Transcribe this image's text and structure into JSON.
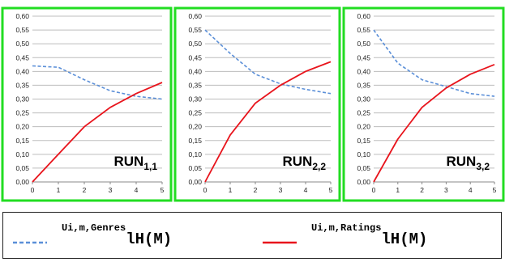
{
  "chart_data": [
    {
      "type": "line",
      "run_label": {
        "base": "RUN",
        "sub": "1,1"
      },
      "x": [
        0,
        1,
        2,
        3,
        4,
        5
      ],
      "ylim": [
        0,
        0.6
      ],
      "yticks": [
        "0,00",
        "0,05",
        "0,10",
        "0,15",
        "0,20",
        "0,25",
        "0,30",
        "0,35",
        "0,40",
        "0,45",
        "0,50",
        "0,55",
        "0,60"
      ],
      "xticks": [
        "0",
        "1",
        "2",
        "3",
        "4",
        "5"
      ],
      "series": [
        {
          "key": "genres",
          "values": [
            0.42,
            0.415,
            0.37,
            0.33,
            0.31,
            0.3
          ]
        },
        {
          "key": "ratings",
          "values": [
            0.0,
            0.1,
            0.2,
            0.27,
            0.32,
            0.36
          ]
        }
      ]
    },
    {
      "type": "line",
      "run_label": {
        "base": "RUN",
        "sub": "2,2"
      },
      "x": [
        0,
        1,
        2,
        3,
        4,
        5
      ],
      "ylim": [
        0,
        0.6
      ],
      "yticks": [
        "0,00",
        "0,05",
        "0,10",
        "0,15",
        "0,20",
        "0,25",
        "0,30",
        "0,35",
        "0,40",
        "0,45",
        "0,50",
        "0,55",
        "0,60"
      ],
      "xticks": [
        "0",
        "1",
        "2",
        "3",
        "4",
        "5"
      ],
      "series": [
        {
          "key": "genres",
          "values": [
            0.55,
            0.465,
            0.39,
            0.355,
            0.335,
            0.32
          ]
        },
        {
          "key": "ratings",
          "values": [
            0.0,
            0.17,
            0.285,
            0.35,
            0.4,
            0.435
          ]
        }
      ]
    },
    {
      "type": "line",
      "run_label": {
        "base": "RUN",
        "sub": "3,2"
      },
      "x": [
        0,
        1,
        2,
        3,
        4,
        5
      ],
      "ylim": [
        0,
        0.6
      ],
      "yticks": [
        "0,00",
        "0,05",
        "0,10",
        "0,15",
        "0,20",
        "0,25",
        "0,30",
        "0,35",
        "0,40",
        "0,45",
        "0,50",
        "0,55",
        "0,60"
      ],
      "xticks": [
        "0",
        "1",
        "2",
        "3",
        "4",
        "5"
      ],
      "series": [
        {
          "key": "genres",
          "values": [
            0.55,
            0.43,
            0.37,
            0.345,
            0.32,
            0.31
          ]
        },
        {
          "key": "ratings",
          "values": [
            0.0,
            0.155,
            0.27,
            0.34,
            0.39,
            0.425
          ]
        }
      ]
    }
  ],
  "legend": [
    {
      "key": "genres",
      "sup": "Ui,m,Genres",
      "main": "lH(M)",
      "color": "#5b8fd8",
      "dashed": true
    },
    {
      "key": "ratings",
      "sup": "Ui,m,Ratings",
      "main": "lH(M)",
      "color": "#e8141c",
      "dashed": false
    }
  ],
  "panel_border_color": "#22dd22",
  "grid_color": "#bdbdbd"
}
